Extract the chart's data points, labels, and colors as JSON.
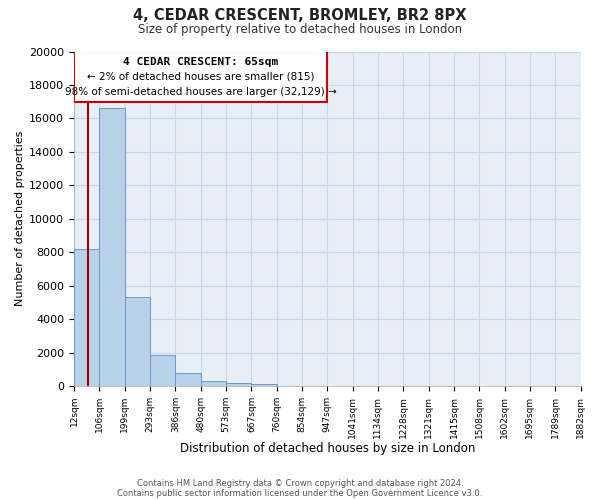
{
  "title": "4, CEDAR CRESCENT, BROMLEY, BR2 8PX",
  "subtitle": "Size of property relative to detached houses in London",
  "bar_values": [
    8200,
    16600,
    5300,
    1850,
    750,
    300,
    175,
    100,
    0,
    0,
    0,
    0,
    0,
    0,
    0,
    0,
    0,
    0,
    0,
    0
  ],
  "bin_labels": [
    "12sqm",
    "106sqm",
    "199sqm",
    "293sqm",
    "386sqm",
    "480sqm",
    "573sqm",
    "667sqm",
    "760sqm",
    "854sqm",
    "947sqm",
    "1041sqm",
    "1134sqm",
    "1228sqm",
    "1321sqm",
    "1415sqm",
    "1508sqm",
    "1602sqm",
    "1695sqm",
    "1789sqm",
    "1882sqm"
  ],
  "xlabel": "Distribution of detached houses by size in London",
  "ylabel": "Number of detached properties",
  "ylim": [
    0,
    20000
  ],
  "yticks": [
    0,
    2000,
    4000,
    6000,
    8000,
    10000,
    12000,
    14000,
    16000,
    18000,
    20000
  ],
  "bar_color": "#b8d0e8",
  "bar_edge_color": "#6699cc",
  "annotation_title": "4 CEDAR CRESCENT: 65sqm",
  "annotation_line1": "← 2% of detached houses are smaller (815)",
  "annotation_line2": "98% of semi-detached houses are larger (32,129) →",
  "vline_color": "#990000",
  "bin_edges": [
    12,
    106,
    199,
    293,
    386,
    480,
    573,
    667,
    760,
    854,
    947,
    1041,
    1134,
    1228,
    1321,
    1415,
    1508,
    1602,
    1695,
    1789,
    1882
  ],
  "vline_x_data": 65,
  "footer_line1": "Contains HM Land Registry data © Crown copyright and database right 2024.",
  "footer_line2": "Contains public sector information licensed under the Open Government Licence v3.0.",
  "bg_color": "#ffffff",
  "plot_bg_color": "#e8eef5",
  "grid_color": "#c8d8e8",
  "ann_box_color": "#cc0000",
  "ann_box_facecolor": "#ffffff"
}
